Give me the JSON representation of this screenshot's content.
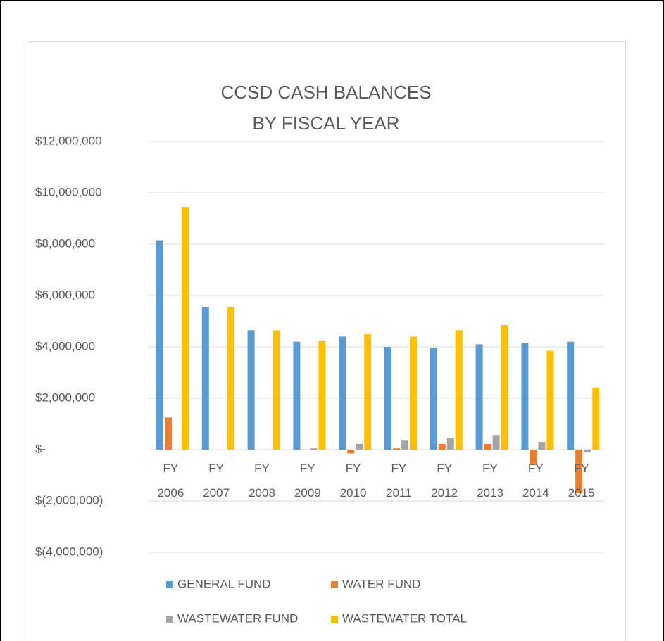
{
  "chart_data": {
    "type": "bar",
    "title": [
      "CCSD CASH BALANCES",
      "BY FISCAL YEAR"
    ],
    "categories": [
      "FY 2006",
      "FY 2007",
      "FY 2008",
      "FY 2009",
      "FY 2010",
      "FY 2011",
      "FY 2012",
      "FY 2013",
      "FY 2014",
      "FY 2015"
    ],
    "series": [
      {
        "name": "GENERAL FUND",
        "color": "#5b9bd5",
        "values": [
          8150000,
          5550000,
          4650000,
          4200000,
          4400000,
          4000000,
          3950000,
          4100000,
          4150000,
          4200000
        ]
      },
      {
        "name": "WATER FUND",
        "color": "#ed7d31",
        "values": [
          1250000,
          0,
          0,
          0,
          -150000,
          50000,
          220000,
          220000,
          -600000,
          -1700000
        ]
      },
      {
        "name": "WASTEWATER FUND",
        "color": "#a5a5a5",
        "values": [
          0,
          0,
          0,
          50000,
          220000,
          350000,
          450000,
          570000,
          300000,
          -100000
        ]
      },
      {
        "name": "WASTEWATER TOTAL",
        "color": "#ffc000",
        "values": [
          9450000,
          5550000,
          4650000,
          4250000,
          4500000,
          4400000,
          4650000,
          4850000,
          3850000,
          2400000
        ]
      }
    ],
    "ylim": [
      -4000000,
      12000000
    ],
    "yticks": [
      {
        "value": -4000000,
        "label": "$(4,000,000)"
      },
      {
        "value": -2000000,
        "label": "$(2,000,000)"
      },
      {
        "value": 0,
        "label": "$-"
      },
      {
        "value": 2000000,
        "label": "$2,000,000"
      },
      {
        "value": 4000000,
        "label": "$4,000,000"
      },
      {
        "value": 6000000,
        "label": "$6,000,000"
      },
      {
        "value": 8000000,
        "label": "$8,000,000"
      },
      {
        "value": 10000000,
        "label": "$10,000,000"
      },
      {
        "value": 12000000,
        "label": "$12,000,000"
      }
    ],
    "grid": true
  }
}
